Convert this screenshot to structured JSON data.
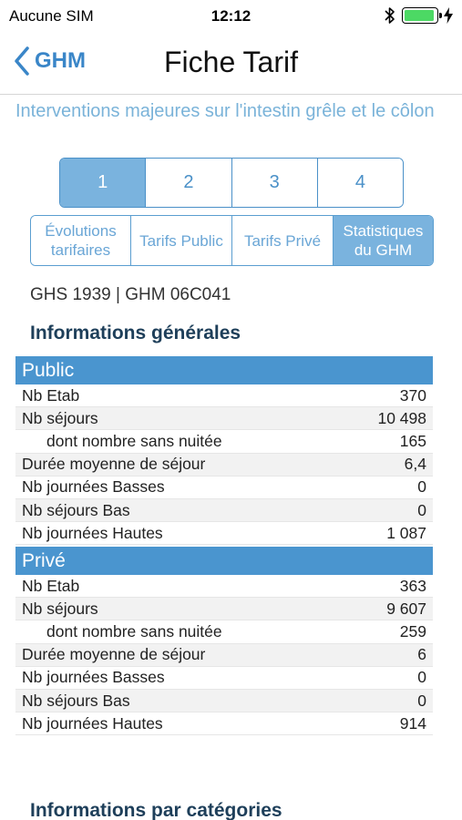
{
  "status_bar": {
    "carrier": "Aucune SIM",
    "time": "12:12",
    "battery_level": 0.95,
    "battery_color": "#4cd964"
  },
  "nav": {
    "back_label": "GHM",
    "title": "Fiche Tarif"
  },
  "intervention_title": "Interventions majeures sur l'intestin grêle et le côlon",
  "pages": {
    "items": [
      "1",
      "2",
      "3",
      "4"
    ],
    "selected": "1"
  },
  "tabs": {
    "items": [
      {
        "label": "Évolutions tarifaires"
      },
      {
        "label": "Tarifs Public"
      },
      {
        "label": "Tarifs Privé"
      },
      {
        "label": "Statistiques du GHM"
      }
    ],
    "selected": "Statistiques du GHM"
  },
  "ghs_line": "GHS 1939 | GHM 06C041",
  "sections": {
    "general_heading": "Informations générales",
    "categories_heading": "Informations par catégories"
  },
  "public": {
    "header": "Public",
    "rows": [
      {
        "label": "Nb Etab",
        "value": "370"
      },
      {
        "label": "Nb séjours",
        "value": "10 498"
      },
      {
        "label": "dont nombre sans nuitée",
        "value": "165"
      },
      {
        "label": "Durée moyenne de séjour",
        "value": "6,4"
      },
      {
        "label": "Nb journées Basses",
        "value": "0"
      },
      {
        "label": "Nb séjours Bas",
        "value": "0"
      },
      {
        "label": "Nb journées Hautes",
        "value": "1 087"
      }
    ]
  },
  "prive": {
    "header": "Privé",
    "rows": [
      {
        "label": "Nb Etab",
        "value": "363"
      },
      {
        "label": "Nb séjours",
        "value": "9 607"
      },
      {
        "label": "dont nombre sans nuitée",
        "value": "259"
      },
      {
        "label": "Durée moyenne de séjour",
        "value": "6"
      },
      {
        "label": "Nb journées Basses",
        "value": "0"
      },
      {
        "label": "Nb séjours Bas",
        "value": "0"
      },
      {
        "label": "Nb journées Hautes",
        "value": "914"
      }
    ]
  },
  "colors": {
    "accent": "#4a95cf",
    "light_accent": "#7ab3de",
    "heading": "#1e3f5a"
  }
}
